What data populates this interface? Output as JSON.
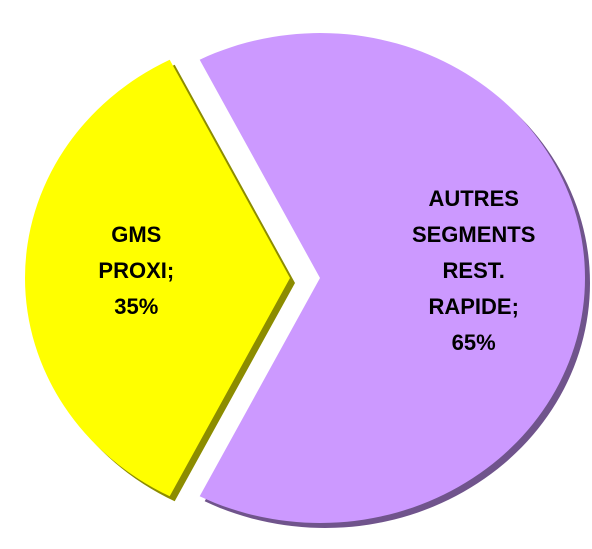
{
  "chart_data": {
    "type": "pie",
    "categories": [
      "GMS PROXI",
      "AUTRES SEGMENTS REST. RAPIDE"
    ],
    "values": [
      35,
      65
    ],
    "value_labels": [
      "35%",
      "65%"
    ],
    "separator": ";",
    "colors": [
      "#ffff00",
      "#cc99ff"
    ]
  }
}
